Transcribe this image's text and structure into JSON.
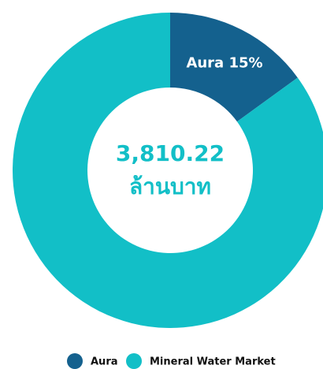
{
  "chart_data": {
    "type": "donut",
    "categories": [
      "Aura",
      "Mineral Water Market"
    ],
    "values": [
      15,
      85
    ],
    "value_labels": [
      "Aura 15%",
      null
    ],
    "colors": [
      "#14618e",
      "#12bfc7"
    ],
    "center_value": "3,810.22",
    "center_unit": "ล้านบาท",
    "legend": "bottom"
  }
}
